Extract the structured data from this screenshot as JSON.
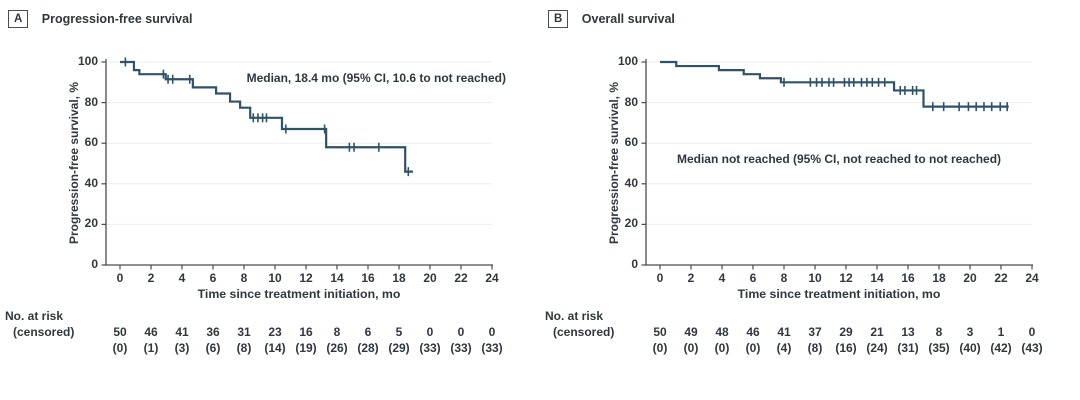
{
  "page": {
    "background": "#ffffff"
  },
  "colors": {
    "curve": "#2e5368",
    "grid": "#ededed",
    "axis": "#474d54",
    "text": "#30373f"
  },
  "chart_data": [
    {
      "type": "line",
      "subtype": "kaplan-meier-step",
      "panel_letter": "A",
      "title": "Progression-free survival",
      "annotation": "Median, 18.4 mo (95% CI, 10.6 to not reached)",
      "xlabel": "Time since treatment initiation, mo",
      "ylabel": "Progression-free survival, %",
      "xlim": [
        0,
        24
      ],
      "ylim": [
        0,
        100
      ],
      "xticks": [
        0,
        2,
        4,
        6,
        8,
        10,
        12,
        14,
        16,
        18,
        20,
        22,
        24
      ],
      "yticks": [
        0,
        20,
        40,
        60,
        80,
        100
      ],
      "grid": "horizontal",
      "legend": "none",
      "steps": [
        [
          0,
          100
        ],
        [
          0.9,
          96
        ],
        [
          1.25,
          94
        ],
        [
          2.95,
          91.5
        ],
        [
          4.7,
          87.5
        ],
        [
          6.2,
          84.5
        ],
        [
          7.1,
          80.5
        ],
        [
          7.75,
          77.5
        ],
        [
          8.4,
          72.5
        ],
        [
          10.45,
          67
        ],
        [
          13.3,
          58
        ],
        [
          18.4,
          46
        ]
      ],
      "end_time": 18.9,
      "censor_marks": [
        [
          0.35,
          100
        ],
        [
          2.8,
          94
        ],
        [
          3.1,
          91.5
        ],
        [
          3.4,
          91.5
        ],
        [
          4.5,
          91.5
        ],
        [
          8.6,
          72.5
        ],
        [
          8.9,
          72.5
        ],
        [
          9.2,
          72.5
        ],
        [
          9.45,
          72.5
        ],
        [
          10.7,
          67
        ],
        [
          13.2,
          67
        ],
        [
          14.8,
          58
        ],
        [
          15.1,
          58
        ],
        [
          16.7,
          58
        ],
        [
          18.6,
          46
        ]
      ],
      "at_risk": {
        "label": "No. at risk",
        "label2": "(censored)",
        "times": [
          0,
          2,
          4,
          6,
          8,
          10,
          12,
          14,
          16,
          18,
          20,
          22,
          24
        ],
        "counts": [
          50,
          46,
          41,
          36,
          31,
          23,
          16,
          8,
          6,
          5,
          0,
          0,
          0
        ],
        "censored": [
          "(0)",
          "(1)",
          "(3)",
          "(6)",
          "(8)",
          "(14)",
          "(19)",
          "(26)",
          "(28)",
          "(29)",
          "(33)",
          "(33)",
          "(33)"
        ]
      }
    },
    {
      "type": "line",
      "subtype": "kaplan-meier-step",
      "panel_letter": "B",
      "title": "Overall survival",
      "annotation": "Median not reached (95% CI, not reached to not reached)",
      "xlabel": "Time since treatment initiation, mo",
      "ylabel": "Progression-free survival, %",
      "xlim": [
        0,
        24
      ],
      "ylim": [
        0,
        100
      ],
      "xticks": [
        0,
        2,
        4,
        6,
        8,
        10,
        12,
        14,
        16,
        18,
        20,
        22,
        24
      ],
      "yticks": [
        0,
        20,
        40,
        60,
        80,
        100
      ],
      "grid": "horizontal",
      "legend": "none",
      "steps": [
        [
          0,
          100
        ],
        [
          1.05,
          98
        ],
        [
          3.8,
          96
        ],
        [
          5.4,
          94
        ],
        [
          6.45,
          92
        ],
        [
          7.8,
          90
        ],
        [
          15.1,
          86
        ],
        [
          17.0,
          78
        ]
      ],
      "end_time": 22.5,
      "censor_marks": [
        [
          8.0,
          90
        ],
        [
          9.7,
          90
        ],
        [
          10.1,
          90
        ],
        [
          10.45,
          90
        ],
        [
          10.9,
          90
        ],
        [
          11.2,
          90
        ],
        [
          11.9,
          90
        ],
        [
          12.2,
          90
        ],
        [
          12.5,
          90
        ],
        [
          13.0,
          90
        ],
        [
          13.35,
          90
        ],
        [
          13.7,
          90
        ],
        [
          14.1,
          90
        ],
        [
          14.5,
          90
        ],
        [
          15.5,
          86
        ],
        [
          15.8,
          86
        ],
        [
          16.3,
          86
        ],
        [
          16.55,
          86
        ],
        [
          17.6,
          78
        ],
        [
          18.3,
          78
        ],
        [
          19.3,
          78
        ],
        [
          19.9,
          78
        ],
        [
          20.4,
          78
        ],
        [
          20.9,
          78
        ],
        [
          21.4,
          78
        ],
        [
          21.95,
          78
        ],
        [
          22.4,
          78
        ]
      ],
      "at_risk": {
        "label": "No. at risk",
        "label2": "(censored)",
        "times": [
          0,
          2,
          4,
          6,
          8,
          10,
          12,
          14,
          16,
          18,
          20,
          22,
          24
        ],
        "counts": [
          50,
          49,
          48,
          46,
          41,
          37,
          29,
          21,
          13,
          8,
          3,
          1,
          0
        ],
        "censored": [
          "(0)",
          "(0)",
          "(0)",
          "(0)",
          "(4)",
          "(8)",
          "(16)",
          "(24)",
          "(31)",
          "(35)",
          "(40)",
          "(42)",
          "(43)"
        ]
      }
    }
  ]
}
